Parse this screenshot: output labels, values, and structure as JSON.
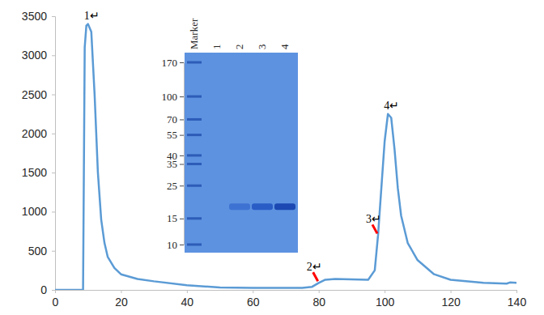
{
  "chart_data": [
    {
      "type": "line",
      "x": [
        0,
        8.5,
        9,
        9.5,
        10,
        11,
        12,
        13,
        14,
        15,
        16,
        18,
        20,
        25,
        30,
        40,
        50,
        60,
        70,
        75,
        78,
        80,
        82,
        85,
        90,
        95,
        97,
        98,
        99,
        100,
        101,
        102,
        103,
        104,
        105,
        107,
        110,
        115,
        120,
        130,
        137,
        138,
        140
      ],
      "values": [
        0,
        0,
        3100,
        3380,
        3400,
        3300,
        2500,
        1500,
        900,
        600,
        420,
        280,
        200,
        140,
        110,
        60,
        30,
        25,
        25,
        25,
        40,
        90,
        130,
        140,
        135,
        130,
        250,
        700,
        1300,
        1900,
        2250,
        2200,
        1800,
        1300,
        950,
        600,
        380,
        200,
        130,
        90,
        80,
        95,
        90
      ],
      "color": "#5b9bd5",
      "xlim": [
        0,
        140
      ],
      "xticks": [
        0,
        20,
        40,
        60,
        80,
        100,
        120,
        140
      ],
      "ylim": [
        0,
        3500
      ],
      "yticks": [
        0,
        500,
        1000,
        1500,
        2000,
        2500,
        3000,
        3500
      ],
      "annotations": [
        {
          "text": "1↵",
          "x": 10,
          "y": 3400
        },
        {
          "text": "2↵",
          "x": 80,
          "y": 90,
          "color": "#ff0000"
        },
        {
          "text": "3↵",
          "x": 98,
          "y": 700,
          "color": "#ff0000"
        },
        {
          "text": "4↵",
          "x": 101,
          "y": 2250
        }
      ]
    },
    {
      "type": "gel",
      "categories": [
        "Marker",
        "1",
        "2",
        "3",
        "4"
      ],
      "values": [
        null,
        null,
        18,
        18,
        18
      ],
      "colors": [
        null,
        null,
        "#3e72d2",
        "#2a5cc6",
        "#1b48b2"
      ],
      "ylim": [
        10,
        170
      ],
      "yticks": [
        170,
        100,
        70,
        55,
        40,
        35,
        25,
        15,
        10
      ],
      "log": "y"
    }
  ]
}
